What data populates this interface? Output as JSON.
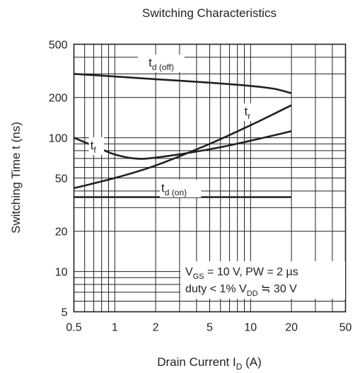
{
  "chart_data": {
    "type": "line",
    "title": "Switching Characteristics",
    "xlabel": {
      "main": "Drain Current  I",
      "sub": "D",
      "unit": "  (A)"
    },
    "ylabel": "Switching Time  t  (ns)",
    "x_scale": "log",
    "y_scale": "log",
    "xlim": [
      0.5,
      50
    ],
    "ylim": [
      5,
      500
    ],
    "grid": true,
    "x_ticks": [
      {
        "value": 0.5,
        "label": "0.5"
      },
      {
        "value": 1,
        "label": "1"
      },
      {
        "value": 2,
        "label": "2"
      },
      {
        "value": 5,
        "label": "5"
      },
      {
        "value": 10,
        "label": "10"
      },
      {
        "value": 20,
        "label": "20"
      },
      {
        "value": 50,
        "label": "50"
      }
    ],
    "y_ticks": [
      {
        "value": 5,
        "label": "5"
      },
      {
        "value": 10,
        "label": "10"
      },
      {
        "value": 20,
        "label": "20"
      },
      {
        "value": 50,
        "label": "50"
      },
      {
        "value": 100,
        "label": "100"
      },
      {
        "value": 200,
        "label": "200"
      },
      {
        "value": 500,
        "label": "500"
      }
    ],
    "series": [
      {
        "name": "t",
        "sub": "d (off)",
        "x": [
          0.5,
          1,
          2,
          5,
          10,
          15,
          20
        ],
        "y": [
          300,
          287,
          274,
          258,
          244,
          232,
          215
        ]
      },
      {
        "name": "t",
        "sub": "r",
        "x": [
          0.5,
          1,
          2,
          5,
          10,
          20
        ],
        "y": [
          42,
          50,
          62,
          90,
          124,
          175
        ]
      },
      {
        "name": "t",
        "sub": "f",
        "x": [
          0.5,
          0.8,
          1,
          1.4,
          2,
          5,
          10,
          20
        ],
        "y": [
          100,
          82,
          75,
          70,
          71,
          82,
          95,
          112
        ]
      },
      {
        "name": "t",
        "sub": "d (on)",
        "x": [
          0.5,
          1,
          2,
          5,
          10,
          20
        ],
        "y": [
          36,
          36,
          36,
          36,
          36,
          36
        ]
      }
    ],
    "annotations": [
      {
        "main1": "V",
        "sub1": "GS",
        "rest1": " = 10 V, PW = 2 µs"
      },
      {
        "main2": "duty < 1%  V",
        "sub2": "DD",
        "rest2": " ≒ 30 V"
      }
    ]
  }
}
